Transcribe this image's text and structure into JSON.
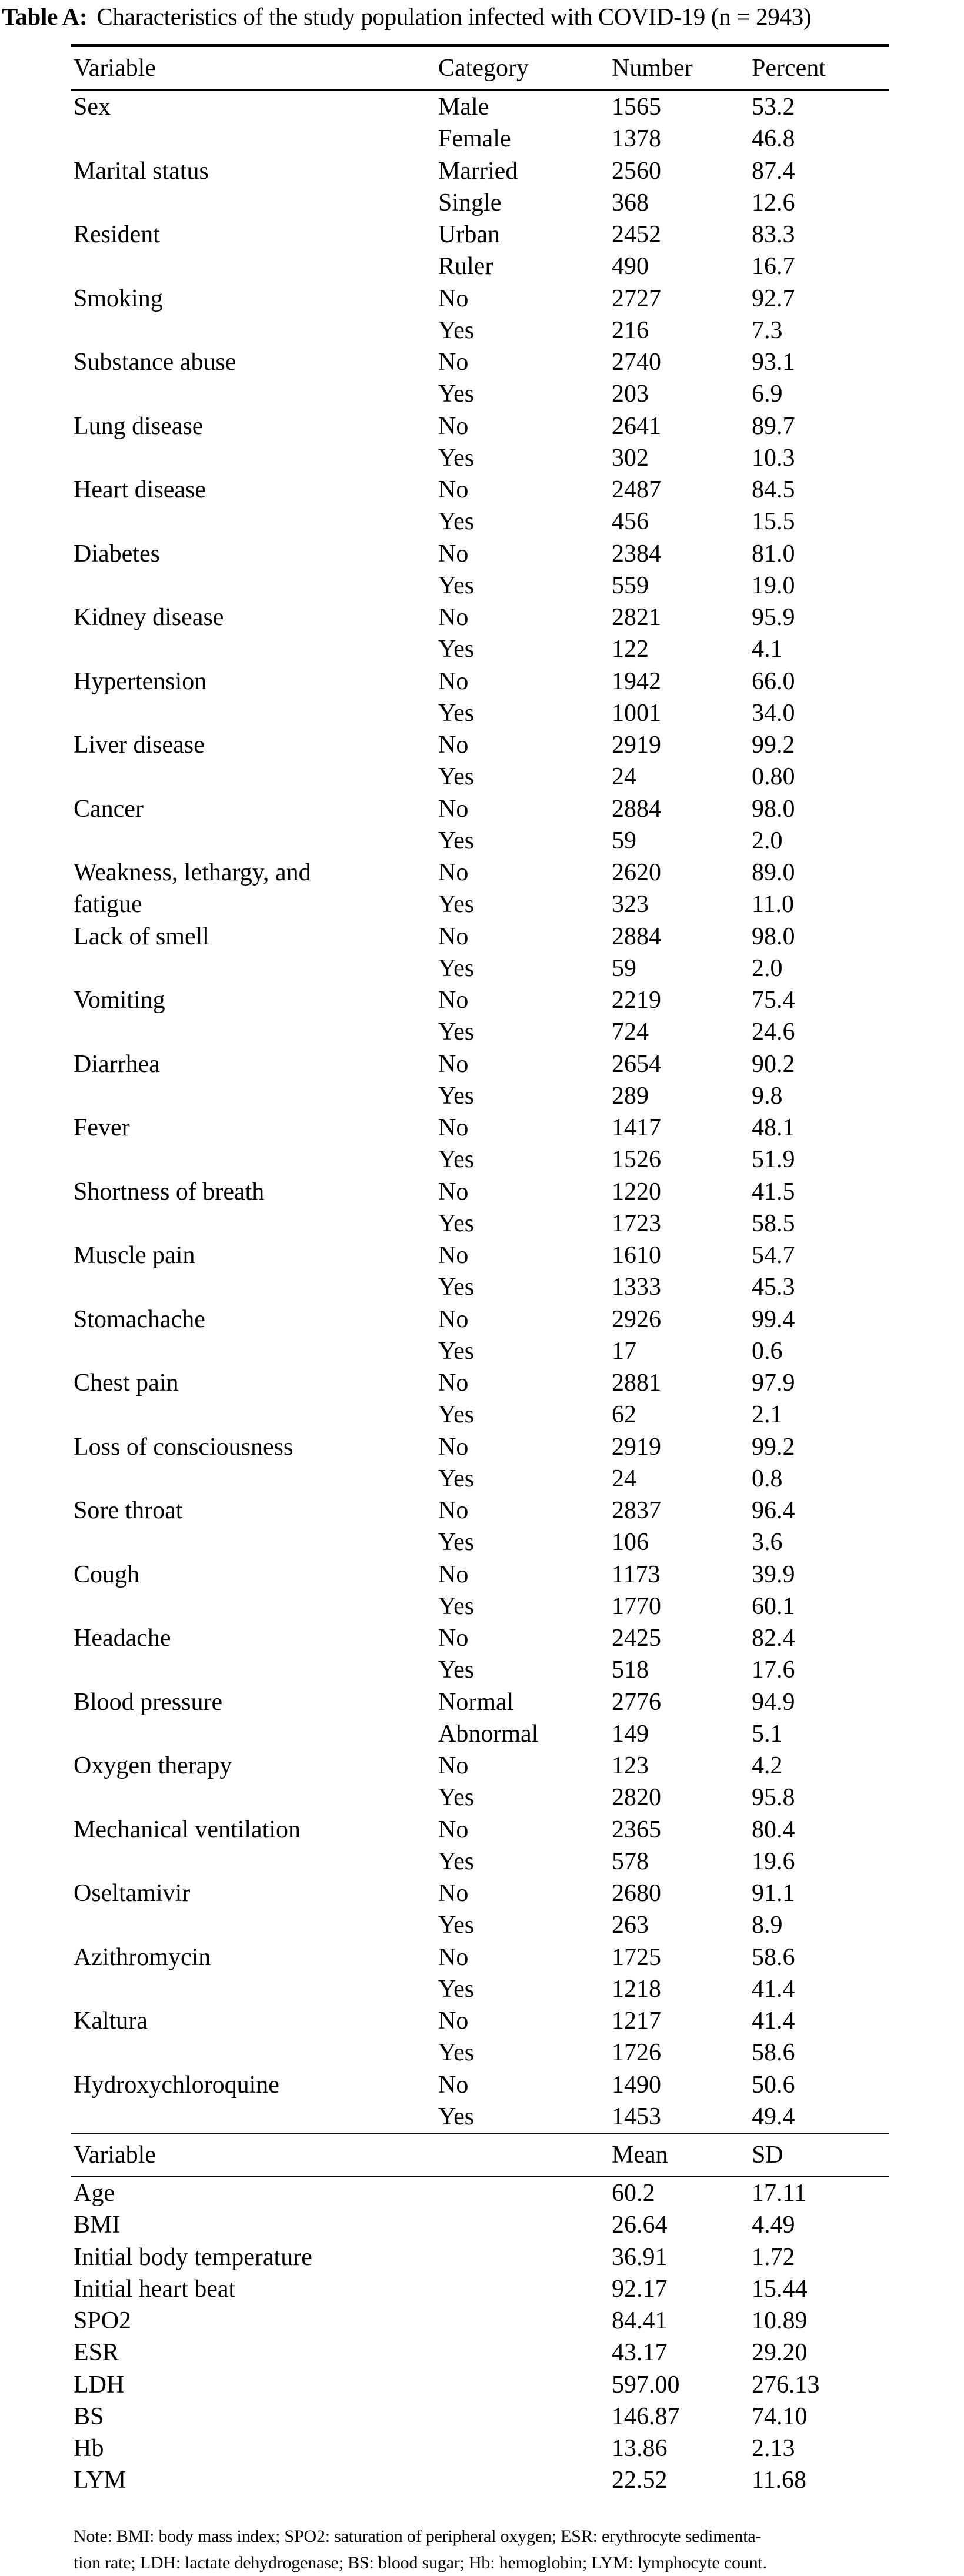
{
  "caption": {
    "label": "Table A:",
    "text": "Characteristics of the study population infected with COVID-19 (n = 2943)"
  },
  "section1": {
    "headers": [
      "Variable",
      "Category",
      "Number",
      "Percent"
    ],
    "rows": [
      [
        "Sex",
        "Male",
        "1565",
        "53.2"
      ],
      [
        "",
        "Female",
        "1378",
        "46.8"
      ],
      [
        "Marital status",
        "Married",
        "2560",
        "87.4"
      ],
      [
        "",
        "Single",
        "368",
        "12.6"
      ],
      [
        "Resident",
        "Urban",
        "2452",
        "83.3"
      ],
      [
        "",
        "Ruler",
        "490",
        "16.7"
      ],
      [
        "Smoking",
        "No",
        "2727",
        "92.7"
      ],
      [
        "",
        "Yes",
        "216",
        "7.3"
      ],
      [
        "Substance abuse",
        "No",
        "2740",
        "93.1"
      ],
      [
        "",
        "Yes",
        "203",
        "6.9"
      ],
      [
        "Lung disease",
        "No",
        "2641",
        "89.7"
      ],
      [
        "",
        "Yes",
        "302",
        "10.3"
      ],
      [
        "Heart disease",
        "No",
        "2487",
        "84.5"
      ],
      [
        "",
        "Yes",
        "456",
        "15.5"
      ],
      [
        "Diabetes",
        "No",
        "2384",
        "81.0"
      ],
      [
        "",
        "Yes",
        "559",
        "19.0"
      ],
      [
        "Kidney disease",
        "No",
        "2821",
        "95.9"
      ],
      [
        "",
        "Yes",
        "122",
        "4.1"
      ],
      [
        "Hypertension",
        "No",
        "1942",
        "66.0"
      ],
      [
        "",
        "Yes",
        "1001",
        "34.0"
      ],
      [
        "Liver disease",
        "No",
        "2919",
        "99.2"
      ],
      [
        "",
        "Yes",
        "24",
        "0.80"
      ],
      [
        "Cancer",
        "No",
        "2884",
        "98.0"
      ],
      [
        "",
        "Yes",
        "59",
        "2.0"
      ],
      [
        "Weakness, lethargy, and",
        "No",
        "2620",
        "89.0"
      ],
      [
        "fatigue",
        "Yes",
        "323",
        "11.0"
      ],
      [
        "Lack of smell",
        "No",
        "2884",
        "98.0"
      ],
      [
        "",
        "Yes",
        "59",
        "2.0"
      ],
      [
        "Vomiting",
        "No",
        "2219",
        "75.4"
      ],
      [
        "",
        "Yes",
        "724",
        "24.6"
      ],
      [
        "Diarrhea",
        "No",
        "2654",
        "90.2"
      ],
      [
        "",
        "Yes",
        "289",
        "9.8"
      ],
      [
        "Fever",
        "No",
        "1417",
        "48.1"
      ],
      [
        "",
        "Yes",
        "1526",
        "51.9"
      ],
      [
        "Shortness of breath",
        "No",
        "1220",
        "41.5"
      ],
      [
        "",
        "Yes",
        "1723",
        "58.5"
      ],
      [
        "Muscle pain",
        "No",
        "1610",
        "54.7"
      ],
      [
        "",
        "Yes",
        "1333",
        "45.3"
      ],
      [
        "Stomachache",
        "No",
        "2926",
        "99.4"
      ],
      [
        "",
        "Yes",
        "17",
        "0.6"
      ],
      [
        "Chest pain",
        "No",
        "2881",
        "97.9"
      ],
      [
        "",
        "Yes",
        "62",
        "2.1"
      ],
      [
        "Loss of consciousness",
        "No",
        "2919",
        "99.2"
      ],
      [
        "",
        "Yes",
        "24",
        "0.8"
      ],
      [
        "Sore throat",
        "No",
        "2837",
        "96.4"
      ],
      [
        "",
        "Yes",
        "106",
        "3.6"
      ],
      [
        "Cough",
        "No",
        "1173",
        "39.9"
      ],
      [
        "",
        "Yes",
        "1770",
        "60.1"
      ],
      [
        "Headache",
        "No",
        "2425",
        "82.4"
      ],
      [
        "",
        "Yes",
        "518",
        "17.6"
      ],
      [
        "Blood pressure",
        "Normal",
        "2776",
        "94.9"
      ],
      [
        "",
        "Abnormal",
        "149",
        "5.1"
      ],
      [
        "Oxygen therapy",
        "No",
        "123",
        "4.2"
      ],
      [
        "",
        "Yes",
        "2820",
        "95.8"
      ],
      [
        "Mechanical ventilation",
        "No",
        "2365",
        "80.4"
      ],
      [
        "",
        "Yes",
        "578",
        "19.6"
      ],
      [
        "Oseltamivir",
        "No",
        "2680",
        "91.1"
      ],
      [
        "",
        "Yes",
        "263",
        "8.9"
      ],
      [
        "Azithromycin",
        "No",
        "1725",
        "58.6"
      ],
      [
        "",
        "Yes",
        "1218",
        "41.4"
      ],
      [
        "Kaltura",
        "No",
        "1217",
        "41.4"
      ],
      [
        "",
        "Yes",
        "1726",
        "58.6"
      ],
      [
        "Hydroxychloroquine",
        "No",
        "1490",
        "50.6"
      ],
      [
        "",
        "Yes",
        "1453",
        "49.4"
      ]
    ]
  },
  "section2": {
    "headers": [
      "Variable",
      "Mean",
      "SD"
    ],
    "rows": [
      [
        "Age",
        "60.2",
        "17.11"
      ],
      [
        "BMI",
        "26.64",
        "4.49"
      ],
      [
        "Initial body temperature",
        "36.91",
        "1.72"
      ],
      [
        "Initial heart beat",
        "92.17",
        "15.44"
      ],
      [
        "SPO2",
        "84.41",
        "10.89"
      ],
      [
        "ESR",
        "43.17",
        "29.20"
      ],
      [
        "LDH",
        "597.00",
        "276.13"
      ],
      [
        "BS",
        "146.87",
        "74.10"
      ],
      [
        "Hb",
        "13.86",
        "2.13"
      ],
      [
        "LYM",
        "22.52",
        "11.68"
      ]
    ]
  },
  "note": {
    "line1": "Note: BMI: body mass index; SPO2: saturation of peripheral oxygen; ESR: erythrocyte sedimenta-",
    "line2": "tion rate; LDH: lactate dehydrogenase; BS: blood sugar; Hb: hemoglobin; LYM: lymphocyte count."
  }
}
